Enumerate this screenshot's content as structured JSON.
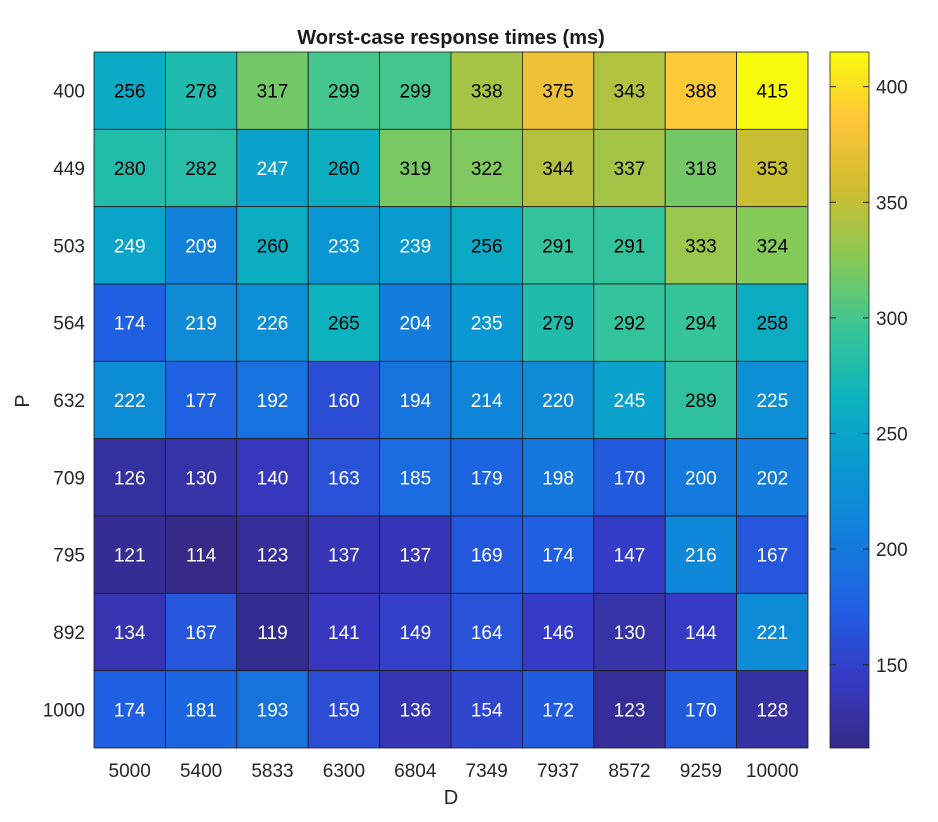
{
  "chart_data": {
    "type": "heatmap",
    "title": "Worst-case response times (ms)",
    "xlabel": "D",
    "ylabel": "P",
    "x_categories": [
      "5000",
      "5400",
      "5833",
      "6300",
      "6804",
      "7349",
      "7937",
      "8572",
      "9259",
      "10000"
    ],
    "y_categories": [
      "400",
      "449",
      "503",
      "564",
      "632",
      "709",
      "795",
      "892",
      "1000"
    ],
    "values": [
      [
        256,
        278,
        317,
        299,
        299,
        338,
        375,
        343,
        388,
        415
      ],
      [
        280,
        282,
        247,
        260,
        319,
        322,
        344,
        337,
        318,
        353
      ],
      [
        249,
        209,
        260,
        233,
        239,
        256,
        291,
        291,
        333,
        324
      ],
      [
        174,
        219,
        226,
        265,
        204,
        235,
        279,
        292,
        294,
        258
      ],
      [
        222,
        177,
        192,
        160,
        194,
        214,
        220,
        245,
        289,
        225
      ],
      [
        126,
        130,
        140,
        163,
        185,
        179,
        198,
        170,
        200,
        202
      ],
      [
        121,
        114,
        123,
        137,
        137,
        169,
        174,
        147,
        216,
        167
      ],
      [
        134,
        167,
        119,
        141,
        149,
        164,
        146,
        130,
        144,
        221
      ],
      [
        174,
        181,
        193,
        159,
        136,
        154,
        172,
        123,
        170,
        128
      ]
    ],
    "colorbar": {
      "colormap": "parula",
      "range": [
        114,
        415
      ],
      "ticks": [
        150,
        200,
        250,
        300,
        350,
        400
      ]
    },
    "colors": {
      "text_light": "#ffffff",
      "text_dark": "#000000",
      "cell_border": "#1a1a1a"
    }
  }
}
